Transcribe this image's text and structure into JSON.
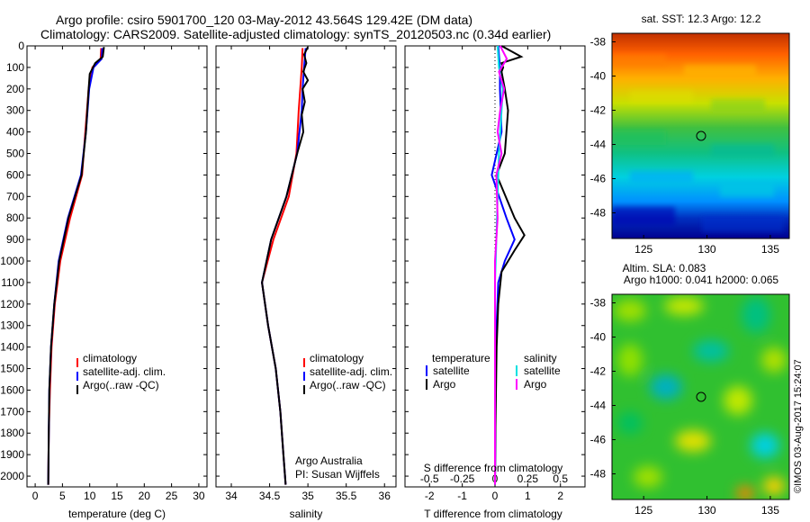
{
  "header": {
    "line1": "Argo profile: csiro 5901700_120 03-May-2012 43.564S 129.42E (DM data)",
    "line2": "Climatology: CARS2009. Satellite-adjusted climatology: synTS_20120503.nc (0.34d earlier)"
  },
  "credit": "©IMOS 03-Aug-2017 15:24:07",
  "colors": {
    "climatology": "#ff0000",
    "satellite": "#0000ff",
    "argo": "#000000",
    "sat_salinity": "#00e0e0",
    "argo_salinity": "#ff00ff"
  },
  "chart_data": [
    {
      "type": "line",
      "id": "temperature",
      "xlabel": "temperature (deg C)",
      "ylabel": "",
      "xlim": [
        -1.5,
        31.5
      ],
      "ylim": [
        2050,
        0
      ],
      "x_ticks": [
        0,
        5,
        10,
        15,
        20,
        25,
        30
      ],
      "y_ticks": [
        0,
        100,
        200,
        300,
        400,
        500,
        600,
        700,
        800,
        900,
        1000,
        1100,
        1200,
        1300,
        1400,
        1500,
        1600,
        1700,
        1800,
        1900,
        2000
      ],
      "legend": {
        "position": "lower-right",
        "entries": [
          "climatology",
          "satellite-adj. clim.",
          "Argo(..raw -QC)"
        ]
      },
      "series": [
        {
          "name": "climatology",
          "color": "#ff0000",
          "depth": [
            10,
            60,
            100,
            200,
            400,
            600,
            800,
            1000,
            1200,
            1400,
            1600,
            1800,
            2040
          ],
          "values": [
            12.1,
            12.0,
            10.5,
            9.8,
            9.2,
            8.6,
            6.4,
            4.6,
            3.6,
            3.0,
            2.7,
            2.5,
            2.4
          ]
        },
        {
          "name": "satellite-adj. clim.",
          "color": "#0000ff",
          "depth": [
            10,
            60,
            100,
            200,
            400,
            600,
            800,
            1000,
            1200,
            1400,
            1600,
            1800,
            2040
          ],
          "values": [
            12.3,
            12.2,
            10.7,
            9.9,
            9.3,
            8.4,
            6.0,
            4.3,
            3.5,
            2.9,
            2.6,
            2.5,
            2.4
          ]
        },
        {
          "name": "Argo(..raw -QC)",
          "color": "#000000",
          "depth": [
            5,
            50,
            80,
            100,
            130,
            200,
            400,
            600,
            800,
            1000,
            1200,
            1400,
            1600,
            1800,
            2040
          ],
          "values": [
            12.6,
            12.4,
            11.0,
            10.6,
            10.0,
            9.8,
            9.3,
            8.5,
            6.1,
            4.4,
            3.5,
            2.9,
            2.6,
            2.5,
            2.4
          ]
        }
      ]
    },
    {
      "type": "line",
      "id": "salinity",
      "xlabel": "salinity",
      "ylabel": "",
      "xlim": [
        33.8,
        36.15
      ],
      "ylim": [
        2050,
        0
      ],
      "x_ticks": [
        34,
        34.5,
        35,
        35.5,
        36
      ],
      "legend": {
        "position": "lower-right",
        "entries": [
          "climatology",
          "satellite-adj. clim.",
          "Argo(..raw -QC)"
        ]
      },
      "annotation": [
        "Argo Australia",
        "PI: Susan Wijffels"
      ],
      "series": [
        {
          "name": "climatology",
          "color": "#ff0000",
          "depth": [
            10,
            100,
            200,
            300,
            500,
            700,
            900,
            1100,
            1300,
            1500,
            1700,
            1900,
            2040
          ],
          "values": [
            34.93,
            34.92,
            34.9,
            34.88,
            34.85,
            34.75,
            34.55,
            34.4,
            34.48,
            34.58,
            34.64,
            34.68,
            34.71
          ]
        },
        {
          "name": "satellite-adj. clim.",
          "color": "#0000ff",
          "depth": [
            10,
            100,
            200,
            300,
            500,
            700,
            900,
            1100,
            1300,
            1500,
            1700,
            1900,
            2040
          ],
          "values": [
            34.97,
            34.95,
            34.93,
            34.92,
            34.86,
            34.72,
            34.52,
            34.4,
            34.48,
            34.58,
            34.64,
            34.68,
            34.71
          ]
        },
        {
          "name": "Argo(..raw -QC)",
          "color": "#000000",
          "depth": [
            5,
            40,
            80,
            120,
            160,
            200,
            260,
            320,
            400,
            500,
            700,
            900,
            1100,
            1300,
            1500,
            1700,
            1900,
            2040
          ],
          "values": [
            35.0,
            34.95,
            34.98,
            34.94,
            35.0,
            34.93,
            34.96,
            34.92,
            34.94,
            34.86,
            34.72,
            34.52,
            34.4,
            34.48,
            34.58,
            34.64,
            34.68,
            34.71
          ]
        }
      ]
    },
    {
      "type": "line",
      "id": "difference",
      "xlabel": "T difference from climatology",
      "ylabel": "",
      "top_xlabel": "S difference from climatology",
      "xlim": [
        -2.75,
        2.75
      ],
      "ylim": [
        2050,
        0
      ],
      "x_ticks": [
        -2,
        -1,
        0,
        1,
        2
      ],
      "x2_ticks": [
        -0.5,
        -0.25,
        0,
        0.25,
        0.5
      ],
      "legend": {
        "position": "lower-right",
        "temperature_title": "temperature",
        "salinity_title": "salinity",
        "entries": [
          "satellite",
          "Argo",
          "satellite",
          "Argo"
        ]
      },
      "series": [
        {
          "name": "satellite",
          "color": "#0000ff",
          "depth": [
            0,
            100,
            200,
            400,
            600,
            800,
            900,
            1000,
            1100,
            1300,
            1500,
            1800,
            2040
          ],
          "values": [
            0.1,
            0.15,
            0.15,
            0.2,
            -0.1,
            0.35,
            0.6,
            0.3,
            0.1,
            0.05,
            0.02,
            0.01,
            0.0
          ]
        },
        {
          "name": "Argo",
          "color": "#000000",
          "depth": [
            0,
            50,
            80,
            100,
            120,
            200,
            300,
            400,
            500,
            600,
            800,
            880,
            950,
            1050,
            1200,
            1400,
            1600,
            1800,
            2040
          ],
          "values": [
            0.2,
            0.8,
            0.2,
            0.25,
            0.2,
            0.3,
            0.4,
            0.35,
            0.3,
            0.05,
            0.6,
            0.9,
            0.6,
            0.2,
            0.1,
            0.05,
            0.03,
            0.01,
            0.0
          ]
        },
        {
          "name": "satellite",
          "color": "#00e0e0",
          "depth": [
            0,
            100,
            200,
            300,
            500,
            700,
            900,
            1100,
            1400,
            1800,
            2040
          ],
          "values": [
            0.02,
            0.03,
            0.06,
            0.05,
            0.03,
            0.02,
            0.01,
            0.0,
            0.0,
            0.0,
            0.0
          ]
        },
        {
          "name": "Argo",
          "color": "#ff00ff",
          "depth": [
            0,
            60,
            120,
            200,
            300,
            400,
            500,
            600,
            800,
            1000,
            1200,
            1500,
            1800,
            2040
          ],
          "values": [
            0.04,
            0.09,
            0.03,
            0.07,
            0.04,
            0.02,
            0.05,
            0.01,
            0.02,
            0.0,
            0.0,
            0.0,
            0.0,
            0.0
          ]
        }
      ]
    },
    {
      "type": "heatmap",
      "id": "sst-map",
      "title": "sat. SST: 12.3 Argo: 12.2",
      "xlim": [
        122.5,
        136.5
      ],
      "ylim": [
        -49.5,
        -37.5
      ],
      "x_ticks": [
        125,
        130,
        135
      ],
      "y_ticks": [
        -38,
        -40,
        -42,
        -44,
        -46,
        -48
      ],
      "marker": {
        "lon": 129.42,
        "lat": -43.56
      }
    },
    {
      "type": "heatmap",
      "id": "sla-map",
      "title": "Altim. SLA: 0.083",
      "subtitle": "Argo h1000: 0.041 h2000: 0.065",
      "xlim": [
        122.5,
        136.5
      ],
      "ylim": [
        -49.5,
        -37.5
      ],
      "x_ticks": [
        125,
        130,
        135
      ],
      "y_ticks": [
        -38,
        -40,
        -42,
        -44,
        -46,
        -48
      ],
      "marker": {
        "lon": 129.42,
        "lat": -43.56
      }
    }
  ]
}
